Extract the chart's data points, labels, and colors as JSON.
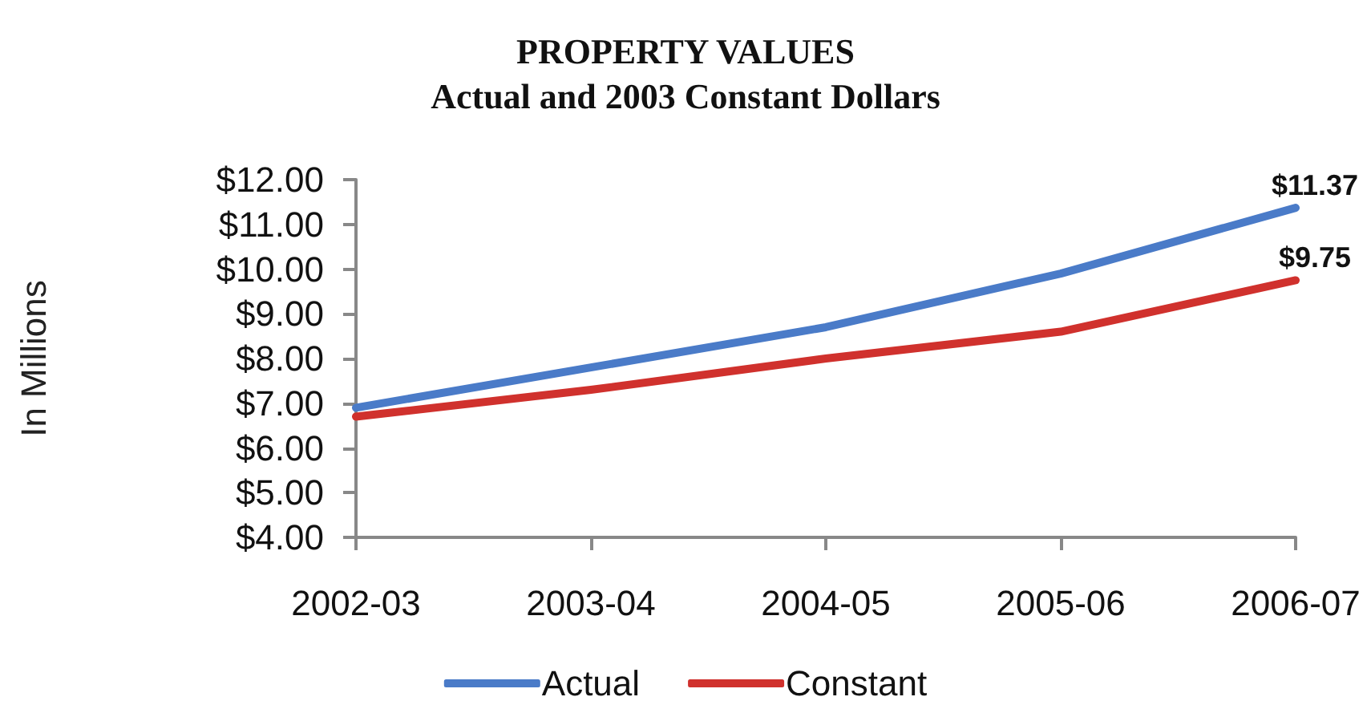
{
  "chart_data": {
    "type": "line",
    "title": "PROPERTY VALUES",
    "subtitle": "Actual and 2003 Constant Dollars",
    "ylabel": "In Millions",
    "categories": [
      "2002-03",
      "2003-04",
      "2004-05",
      "2005-06",
      "2006-07"
    ],
    "series": [
      {
        "name": "Actual",
        "color": "#4a7bc8",
        "values": [
          6.9,
          7.8,
          8.7,
          9.9,
          11.37
        ],
        "value_labels": [
          null,
          null,
          null,
          null,
          "$11.37"
        ]
      },
      {
        "name": "Constant",
        "color": "#d0312d",
        "values": [
          6.7,
          7.3,
          8.0,
          8.6,
          9.75
        ],
        "value_labels": [
          null,
          null,
          null,
          null,
          "$9.75"
        ]
      }
    ],
    "ylim": [
      4,
      12
    ],
    "yticks": [
      {
        "value": 4,
        "label": "$4.00"
      },
      {
        "value": 5,
        "label": "$5.00"
      },
      {
        "value": 6,
        "label": "$6.00"
      },
      {
        "value": 7,
        "label": "$7.00"
      },
      {
        "value": 8,
        "label": "$8.00"
      },
      {
        "value": 9,
        "label": "$9.00"
      },
      {
        "value": 10,
        "label": "$10.00"
      },
      {
        "value": 11,
        "label": "$11.00"
      },
      {
        "value": 12,
        "label": "$12.00"
      }
    ],
    "grid": false,
    "legend": "bottom",
    "marker": "none",
    "line_style": "solid"
  }
}
